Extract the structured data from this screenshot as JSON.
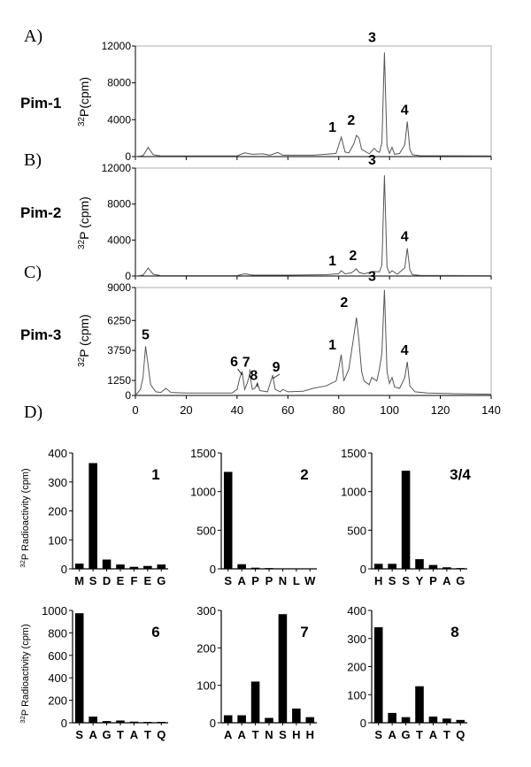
{
  "panel_letters": [
    "A)",
    "B)",
    "C)",
    "D)"
  ],
  "chart_data": [
    {
      "type": "line",
      "kinase": "Pim-1",
      "ylabel_sup": "32",
      "ylabel": "P(cpm)",
      "ylim": [
        0,
        12000
      ],
      "yticks": [
        0,
        4000,
        8000,
        12000
      ],
      "xlim": [
        0,
        140
      ],
      "peaks": [
        {
          "label": "1",
          "x": 81,
          "y": 2100
        },
        {
          "label": "2",
          "x": 87,
          "y": 2300
        },
        {
          "label": "3",
          "x": 98,
          "y": 11300
        },
        {
          "label": "4",
          "x": 107,
          "y": 3800
        }
      ],
      "trace": [
        [
          0,
          0
        ],
        [
          3,
          100
        ],
        [
          5,
          1000
        ],
        [
          7,
          200
        ],
        [
          10,
          80
        ],
        [
          40,
          80
        ],
        [
          43,
          400
        ],
        [
          46,
          250
        ],
        [
          50,
          300
        ],
        [
          53,
          150
        ],
        [
          56,
          450
        ],
        [
          58,
          150
        ],
        [
          70,
          150
        ],
        [
          75,
          250
        ],
        [
          79,
          350
        ],
        [
          81,
          2100
        ],
        [
          82.5,
          500
        ],
        [
          84,
          400
        ],
        [
          86,
          1400
        ],
        [
          87,
          2300
        ],
        [
          88,
          2000
        ],
        [
          89,
          800
        ],
        [
          92,
          300
        ],
        [
          94,
          900
        ],
        [
          95,
          600
        ],
        [
          96,
          450
        ],
        [
          97,
          1500
        ],
        [
          98,
          11300
        ],
        [
          99,
          1200
        ],
        [
          100,
          350
        ],
        [
          101,
          1000
        ],
        [
          102,
          250
        ],
        [
          104,
          350
        ],
        [
          106,
          1300
        ],
        [
          107,
          3800
        ],
        [
          108,
          800
        ],
        [
          109,
          200
        ],
        [
          112,
          100
        ],
        [
          140,
          80
        ]
      ]
    },
    {
      "type": "line",
      "kinase": "Pim-2",
      "ylabel_sup": "32",
      "ylabel": "P (cpm)",
      "ylim": [
        0,
        12000
      ],
      "yticks": [
        0,
        4000,
        8000,
        12000
      ],
      "xlim": [
        0,
        140
      ],
      "peaks": [
        {
          "label": "1",
          "x": 81,
          "y": 600
        },
        {
          "label": "2",
          "x": 87,
          "y": 800
        },
        {
          "label": "3",
          "x": 98,
          "y": 11200
        },
        {
          "label": "4",
          "x": 107,
          "y": 3100
        }
      ],
      "trace": [
        [
          0,
          0
        ],
        [
          3,
          100
        ],
        [
          5,
          900
        ],
        [
          7,
          200
        ],
        [
          10,
          50
        ],
        [
          40,
          50
        ],
        [
          43,
          250
        ],
        [
          46,
          100
        ],
        [
          60,
          100
        ],
        [
          75,
          150
        ],
        [
          80,
          250
        ],
        [
          81,
          600
        ],
        [
          82.5,
          250
        ],
        [
          85,
          350
        ],
        [
          87,
          800
        ],
        [
          88,
          400
        ],
        [
          90,
          250
        ],
        [
          94,
          500
        ],
        [
          96,
          450
        ],
        [
          97,
          1200
        ],
        [
          98,
          11200
        ],
        [
          99,
          1000
        ],
        [
          100,
          300
        ],
        [
          101,
          600
        ],
        [
          103,
          200
        ],
        [
          106,
          900
        ],
        [
          107,
          3100
        ],
        [
          108,
          700
        ],
        [
          109,
          150
        ],
        [
          112,
          80
        ],
        [
          140,
          50
        ]
      ]
    },
    {
      "type": "line",
      "kinase": "Pim-3",
      "ylabel_sup": "32",
      "ylabel": "P (cpm)",
      "ylim": [
        0,
        9000
      ],
      "yticks": [
        0,
        1250,
        3750,
        6250,
        9000
      ],
      "xlim": [
        0,
        140
      ],
      "xticks": [
        0,
        20,
        40,
        60,
        80,
        100,
        120,
        140
      ],
      "peaks": [
        {
          "label": "1",
          "x": 81,
          "y": 3400
        },
        {
          "label": "2",
          "x": 87,
          "y": 6500
        },
        {
          "label": "3",
          "x": 98,
          "y": 8800
        },
        {
          "label": "4",
          "x": 107,
          "y": 2800
        },
        {
          "label": "5",
          "x": 4,
          "y": 4100
        },
        {
          "label": "6",
          "x": 42,
          "y": 2000
        },
        {
          "label": "7",
          "x": 45,
          "y": 1800
        },
        {
          "label": "8",
          "x": 48,
          "y": 1000
        },
        {
          "label": "9",
          "x": 54,
          "y": 1700
        }
      ],
      "trace": [
        [
          0,
          0
        ],
        [
          2,
          500
        ],
        [
          3,
          1500
        ],
        [
          4,
          4100
        ],
        [
          5,
          2500
        ],
        [
          6,
          900
        ],
        [
          8,
          300
        ],
        [
          10,
          250
        ],
        [
          12,
          600
        ],
        [
          14,
          250
        ],
        [
          20,
          200
        ],
        [
          38,
          200
        ],
        [
          40,
          500
        ],
        [
          41,
          1400
        ],
        [
          42,
          2000
        ],
        [
          43,
          500
        ],
        [
          44,
          1000
        ],
        [
          45,
          1800
        ],
        [
          46,
          500
        ],
        [
          47,
          600
        ],
        [
          48,
          1000
        ],
        [
          49,
          400
        ],
        [
          52,
          300
        ],
        [
          54,
          1700
        ],
        [
          55,
          500
        ],
        [
          57,
          300
        ],
        [
          58,
          500
        ],
        [
          60,
          300
        ],
        [
          66,
          350
        ],
        [
          70,
          600
        ],
        [
          75,
          800
        ],
        [
          79,
          1200
        ],
        [
          80,
          2200
        ],
        [
          81,
          3400
        ],
        [
          82,
          1200
        ],
        [
          84,
          2200
        ],
        [
          86,
          5000
        ],
        [
          87,
          6500
        ],
        [
          88,
          4500
        ],
        [
          89,
          2000
        ],
        [
          90,
          1200
        ],
        [
          92,
          900
        ],
        [
          93,
          1500
        ],
        [
          95,
          1200
        ],
        [
          96,
          2200
        ],
        [
          97,
          3500
        ],
        [
          98,
          8800
        ],
        [
          99,
          2000
        ],
        [
          100,
          1000
        ],
        [
          101,
          1500
        ],
        [
          102,
          700
        ],
        [
          104,
          600
        ],
        [
          106,
          1500
        ],
        [
          107,
          2800
        ],
        [
          108,
          800
        ],
        [
          110,
          300
        ],
        [
          115,
          200
        ],
        [
          125,
          150
        ],
        [
          140,
          100
        ]
      ]
    },
    {
      "type": "bar",
      "label": "1",
      "categories": [
        "M",
        "S",
        "D",
        "E",
        "F",
        "E",
        "G"
      ],
      "values": [
        18,
        365,
        32,
        15,
        7,
        10,
        15
      ],
      "ylim": [
        0,
        400
      ],
      "yticks": [
        0,
        100,
        200,
        300,
        400
      ],
      "ylabel_sup": "32",
      "ylabel": "P Radioactivity (cpm)"
    },
    {
      "type": "bar",
      "label": "2",
      "categories": [
        "S",
        "A",
        "P",
        "P",
        "N",
        "L",
        "W"
      ],
      "values": [
        1255,
        60,
        15,
        10,
        5,
        5,
        3
      ],
      "ylim": [
        0,
        1500
      ],
      "yticks": [
        0,
        500,
        1000,
        1500
      ]
    },
    {
      "type": "bar",
      "label": "3/4",
      "categories": [
        "H",
        "S",
        "S",
        "Y",
        "P",
        "A",
        "G"
      ],
      "values": [
        65,
        65,
        1270,
        125,
        50,
        20,
        10
      ],
      "ylim": [
        0,
        1500
      ],
      "yticks": [
        0,
        500,
        1000,
        1500
      ]
    },
    {
      "type": "bar",
      "label": "6",
      "categories": [
        "S",
        "A",
        "G",
        "T",
        "A",
        "T",
        "Q"
      ],
      "values": [
        975,
        55,
        15,
        20,
        10,
        8,
        8
      ],
      "ylim": [
        0,
        1000
      ],
      "yticks": [
        0,
        200,
        400,
        600,
        800,
        1000
      ],
      "ylabel_sup": "32",
      "ylabel": "P Radioactivity (cpm)"
    },
    {
      "type": "bar",
      "label": "7",
      "categories": [
        "A",
        "A",
        "T",
        "N",
        "S",
        "H",
        "H"
      ],
      "values": [
        20,
        20,
        110,
        13,
        290,
        38,
        15
      ],
      "ylim": [
        0,
        300
      ],
      "yticks": [
        0,
        100,
        200,
        300
      ]
    },
    {
      "type": "bar",
      "label": "8",
      "categories": [
        "S",
        "A",
        "G",
        "T",
        "A",
        "T",
        "Q"
      ],
      "values": [
        340,
        35,
        20,
        130,
        22,
        15,
        10
      ],
      "ylim": [
        0,
        400
      ],
      "yticks": [
        0,
        100,
        200,
        300,
        400
      ]
    }
  ]
}
